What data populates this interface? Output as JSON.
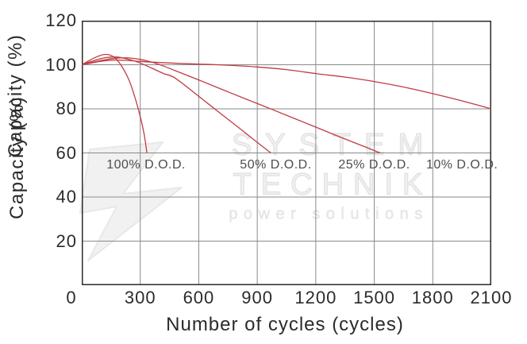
{
  "chart_data": {
    "type": "line",
    "title": "",
    "xlabel": "Number of cycles (cycles)",
    "ylabel": "Capacity (%)",
    "xlim": [
      0,
      2100
    ],
    "ylim": [
      0,
      120
    ],
    "x_ticks": [
      0,
      300,
      600,
      900,
      1200,
      1500,
      1800,
      2100
    ],
    "y_ticks": [
      20,
      40,
      60,
      80,
      100,
      120
    ],
    "grid": true,
    "legend": "none",
    "line_color": "#c03c42",
    "series": [
      {
        "name": "100% D.O.D.",
        "dod_percent": 100,
        "points": [
          [
            0,
            100
          ],
          [
            40,
            102
          ],
          [
            80,
            103.7
          ],
          [
            120,
            104.7
          ],
          [
            160,
            103.8
          ],
          [
            200,
            100
          ],
          [
            240,
            93.5
          ],
          [
            270,
            86
          ],
          [
            300,
            76.5
          ],
          [
            320,
            68.5
          ],
          [
            334,
            60
          ]
        ]
      },
      {
        "name": "50% D.O.D.",
        "dod_percent": 50,
        "points": [
          [
            0,
            100
          ],
          [
            60,
            101.8
          ],
          [
            120,
            103.2
          ],
          [
            180,
            103.5
          ],
          [
            240,
            102.5
          ],
          [
            300,
            100.8
          ],
          [
            360,
            98.4
          ],
          [
            420,
            96
          ],
          [
            480,
            93.9
          ],
          [
            600,
            85.7
          ],
          [
            700,
            78.7
          ],
          [
            800,
            71.8
          ],
          [
            900,
            64.8
          ],
          [
            970,
            60
          ]
        ]
      },
      {
        "name": "25% D.O.D.",
        "dod_percent": 25,
        "points": [
          [
            0,
            100
          ],
          [
            60,
            101.2
          ],
          [
            120,
            102.3
          ],
          [
            180,
            103
          ],
          [
            240,
            103.1
          ],
          [
            300,
            102.4
          ],
          [
            360,
            101.2
          ],
          [
            420,
            99.4
          ],
          [
            480,
            97.3
          ],
          [
            600,
            93.1
          ],
          [
            720,
            88.8
          ],
          [
            840,
            84.5
          ],
          [
            960,
            80.3
          ],
          [
            1080,
            76
          ],
          [
            1200,
            71.7
          ],
          [
            1320,
            67.4
          ],
          [
            1440,
            63.2
          ],
          [
            1530,
            60
          ]
        ]
      },
      {
        "name": "10% D.O.D.",
        "dod_percent": 10,
        "points": [
          [
            0,
            100
          ],
          [
            50,
            100.8
          ],
          [
            100,
            101.6
          ],
          [
            160,
            102.1
          ],
          [
            220,
            102
          ],
          [
            300,
            101.5
          ],
          [
            400,
            101
          ],
          [
            500,
            100.6
          ],
          [
            600,
            100.3
          ],
          [
            750,
            99.8
          ],
          [
            900,
            99
          ],
          [
            1050,
            97.8
          ],
          [
            1200,
            96
          ],
          [
            1350,
            94.4
          ],
          [
            1500,
            92.4
          ],
          [
            1650,
            89.9
          ],
          [
            1800,
            86.9
          ],
          [
            1950,
            83.6
          ],
          [
            2100,
            80
          ]
        ]
      }
    ],
    "annotations": [
      {
        "label": "100% D.O.D.",
        "x": 330,
        "y": 54.5
      },
      {
        "label": "50% D.O.D.",
        "x": 995,
        "y": 54.5
      },
      {
        "label": "25% D.O.D.",
        "x": 1500,
        "y": 54.5
      },
      {
        "label": "10% D.O.D.",
        "x": 1950,
        "y": 54.5
      }
    ]
  },
  "watermark": {
    "line1": "SYSTEM",
    "line2": "TECHNIK",
    "tagline": "power solutions"
  },
  "colors": {
    "background": "#ffffff",
    "curve": "#c03c42",
    "grid": "#8a8a8a",
    "frame": "#2b2b2b",
    "text": "#2b2b2b",
    "curve_label": "#4d4d4d",
    "watermark_outline": "#e3e3e3",
    "watermark_fill": "#f2f2f2"
  }
}
